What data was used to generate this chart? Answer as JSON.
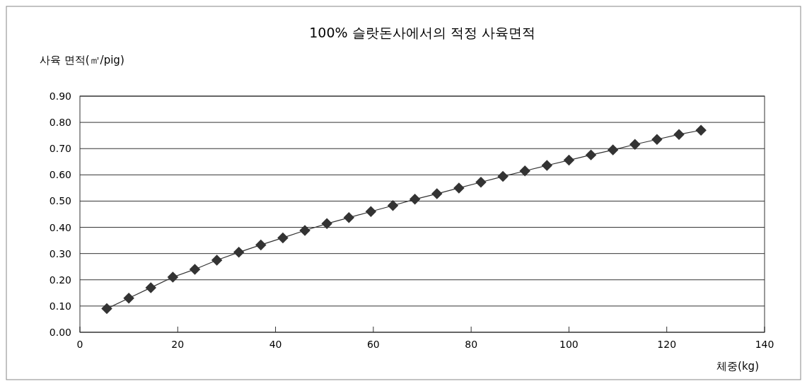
{
  "chart_data": {
    "type": "line",
    "title": "100% 슬랏돈사에서의 적정 사육면적",
    "ylabel": "사육 면적(㎡/pig)",
    "xlabel": "체중(kg)",
    "x": [
      5.5,
      10,
      14.5,
      19,
      23.5,
      28,
      32.5,
      37,
      41.5,
      46,
      50.5,
      55,
      59.5,
      64,
      68.5,
      73,
      77.5,
      82,
      86.5,
      91,
      95.5,
      100,
      104.5,
      109,
      113.5,
      118,
      122.5,
      127
    ],
    "series": [
      {
        "color": "#333333",
        "values": [
          0.09,
          0.13,
          0.17,
          0.21,
          0.24,
          0.275,
          0.305,
          0.333,
          0.36,
          0.388,
          0.414,
          0.437,
          0.46,
          0.483,
          0.507,
          0.528,
          0.55,
          0.572,
          0.594,
          0.615,
          0.636,
          0.656,
          0.676,
          0.695,
          0.716,
          0.735,
          0.754,
          0.77
        ]
      }
    ],
    "xlim": [
      0,
      140
    ],
    "xticks": [
      0,
      20,
      40,
      60,
      80,
      100,
      120,
      140
    ],
    "ylim": [
      0,
      0.9
    ],
    "yticks": [
      {
        "value": 0,
        "label": "0.00"
      },
      {
        "value": 0.1,
        "label": "0.10"
      },
      {
        "value": 0.2,
        "label": "0.20"
      },
      {
        "value": 0.3,
        "label": "0.30"
      },
      {
        "value": 0.4,
        "label": "0.40"
      },
      {
        "value": 0.5,
        "label": "0.50"
      },
      {
        "value": 0.6,
        "label": "0.60"
      },
      {
        "value": 0.7,
        "label": "0.70"
      },
      {
        "value": 0.8,
        "label": "0.80"
      },
      {
        "value": 0.9,
        "label": "0.90"
      }
    ],
    "grid": "y",
    "marker": "diamond"
  }
}
